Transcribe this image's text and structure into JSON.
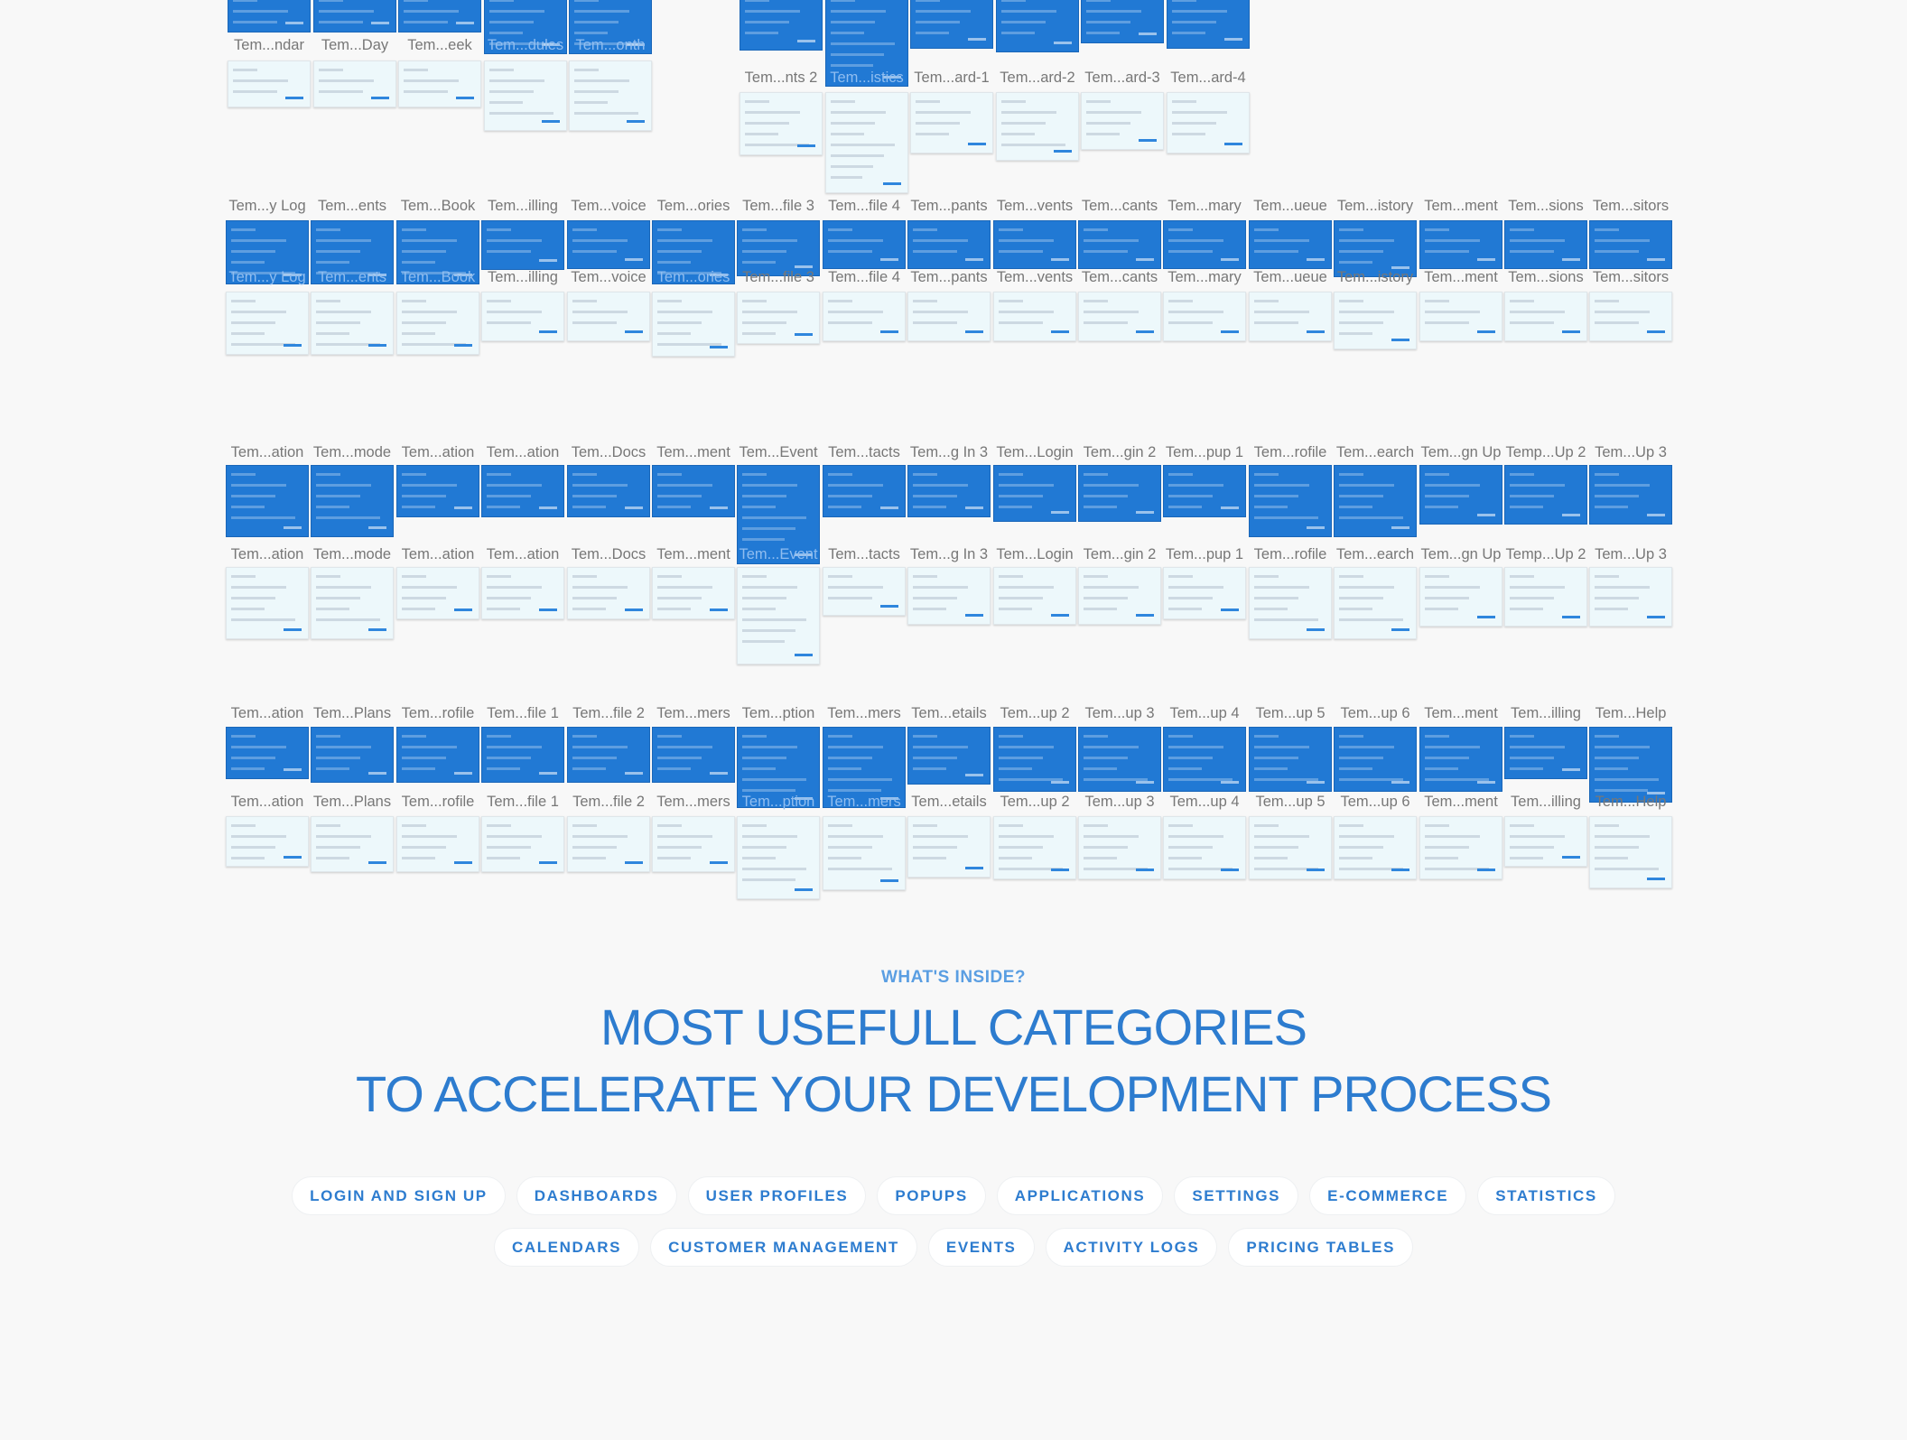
{
  "colors": {
    "background": "#f8f8f8",
    "selected_artboard": "#2179d4",
    "artboard_preview": "#edf8fb",
    "label": "#777777",
    "accent": "#2d7ccf"
  },
  "artboard_groups": [
    {
      "top_labels": [],
      "bottom_labels": [
        "Tem...ndar",
        "Tem...Day",
        "Tem...eek",
        "Tem...dules",
        "Tem...onth"
      ]
    },
    {
      "top_labels": [],
      "bottom_labels": [
        "Tem...nts 2",
        "Tem...istics",
        "Tem...ard-1",
        "Tem...ard-2",
        "Tem...ard-3",
        "Tem...ard-4"
      ]
    },
    {
      "top_labels": [
        "Tem...y Log",
        "Tem...ents",
        "Tem...Book",
        "Tem...illing",
        "Tem...voice",
        "Tem...ories",
        "Tem...file 3",
        "Tem...file 4",
        "Tem...pants",
        "Tem...vents",
        "Tem...cants",
        "Tem...mary",
        "Tem...ueue",
        "Tem...istory",
        "Tem...ment",
        "Tem...sions",
        "Tem...sitors"
      ],
      "bottom_labels": [
        "Tem...y Log",
        "Tem...ents",
        "Tem...Book",
        "Tem...illing",
        "Tem...voice",
        "Tem...ories",
        "Tem...file 3",
        "Tem...file 4",
        "Tem...pants",
        "Tem...vents",
        "Tem...cants",
        "Tem...mary",
        "Tem...ueue",
        "Tem...istory",
        "Tem...ment",
        "Tem...sions",
        "Tem...sitors"
      ]
    },
    {
      "top_labels": [
        "Tem...ation",
        "Tem...mode",
        "Tem...ation",
        "Tem...ation",
        "Tem...Docs",
        "Tem...ment",
        "Tem...Event",
        "Tem...tacts",
        "Tem...g In 3",
        "Tem...Login",
        "Tem...gin 2",
        "Tem...pup 1",
        "Tem...rofile",
        "Tem...earch",
        "Tem...gn Up",
        "Temp...Up 2",
        "Tem...Up 3"
      ],
      "bottom_labels": [
        "Tem...ation",
        "Tem...mode",
        "Tem...ation",
        "Tem...ation",
        "Tem...Docs",
        "Tem...ment",
        "Tem...Event",
        "Tem...tacts",
        "Tem...g In 3",
        "Tem...Login",
        "Tem...gin 2",
        "Tem...pup 1",
        "Tem...rofile",
        "Tem...earch",
        "Tem...gn Up",
        "Temp...Up 2",
        "Tem...Up 3"
      ]
    },
    {
      "top_labels": [
        "Tem...ation",
        "Tem...Plans",
        "Tem...rofile",
        "Tem...file 1",
        "Tem...file 2",
        "Tem...mers",
        "Tem...ption",
        "Tem...mers",
        "Tem...etails",
        "Tem...up 2",
        "Tem...up 3",
        "Tem...up 4",
        "Tem...up 5",
        "Tem...up 6",
        "Tem...ment",
        "Tem...illing",
        "Tem...Help"
      ],
      "bottom_labels": [
        "Tem...ation",
        "Tem...Plans",
        "Tem...rofile",
        "Tem...file 1",
        "Tem...file 2",
        "Tem...mers",
        "Tem...ption",
        "Tem...mers",
        "Tem...etails",
        "Tem...up 2",
        "Tem...up 3",
        "Tem...up 4",
        "Tem...up 5",
        "Tem...up 6",
        "Tem...ment",
        "Tem...illing",
        "Tem...Help"
      ]
    }
  ],
  "inside": {
    "eyebrow": "WHAT'S INSIDE?",
    "headline_line_1": "MOST USEFULL CATEGORIES",
    "headline_line_2": "TO ACCELERATE YOUR DEVELOPMENT PROCESS",
    "categories_row_1": [
      "LOGIN AND SIGN UP",
      "DASHBOARDS",
      "USER PROFILES",
      "POPUPS",
      "APPLICATIONS",
      "SETTINGS",
      "E-COMMERCE",
      "STATISTICS"
    ],
    "categories_row_2": [
      "CALENDARS",
      "CUSTOMER MANAGEMENT",
      "EVENTS",
      "ACTIVITY LOGS",
      "PRICING TABLES"
    ]
  }
}
